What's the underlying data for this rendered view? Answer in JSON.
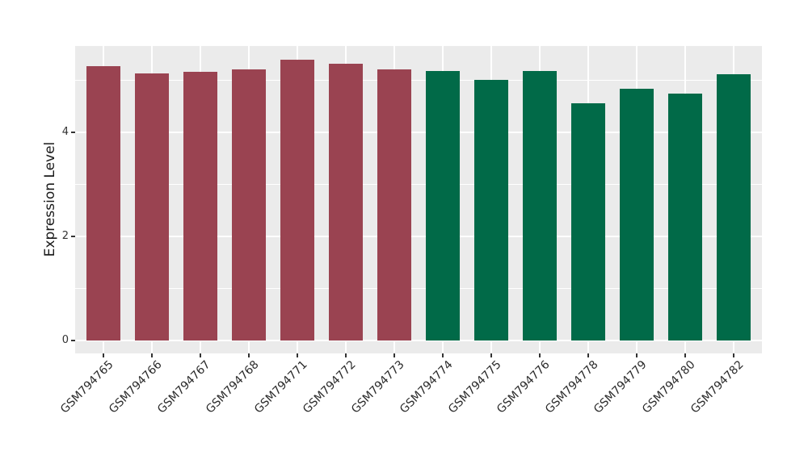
{
  "chart_data": {
    "type": "bar",
    "title": "",
    "xlabel": "",
    "ylabel": "Expression Level",
    "categories": [
      "GSM794765",
      "GSM794766",
      "GSM794767",
      "GSM794768",
      "GSM794771",
      "GSM794772",
      "GSM794773",
      "GSM794774",
      "GSM794775",
      "GSM794776",
      "GSM794778",
      "GSM794779",
      "GSM794780",
      "GSM794782"
    ],
    "values": [
      5.27,
      5.13,
      5.16,
      5.21,
      5.4,
      5.32,
      5.21,
      5.18,
      5.01,
      5.18,
      4.56,
      4.84,
      4.75,
      5.12
    ],
    "groups": [
      "group1",
      "group1",
      "group1",
      "group1",
      "group1",
      "group1",
      "group1",
      "group2",
      "group2",
      "group2",
      "group2",
      "group2",
      "group2",
      "group2"
    ],
    "group_colors": {
      "group1": "#9A4351",
      "group2": "#016A48"
    },
    "y_ticks": [
      0,
      2,
      4
    ],
    "y_tick_labels": [
      "0",
      "2",
      "4"
    ],
    "y_minor_ticks": [
      1,
      3,
      5
    ],
    "ylim": [
      -0.25,
      5.66
    ],
    "legend": "none",
    "grid": true,
    "panel_bg": "#EBEBEB",
    "grid_color": "#FFFFFF",
    "axis_text_color": "#333333"
  }
}
